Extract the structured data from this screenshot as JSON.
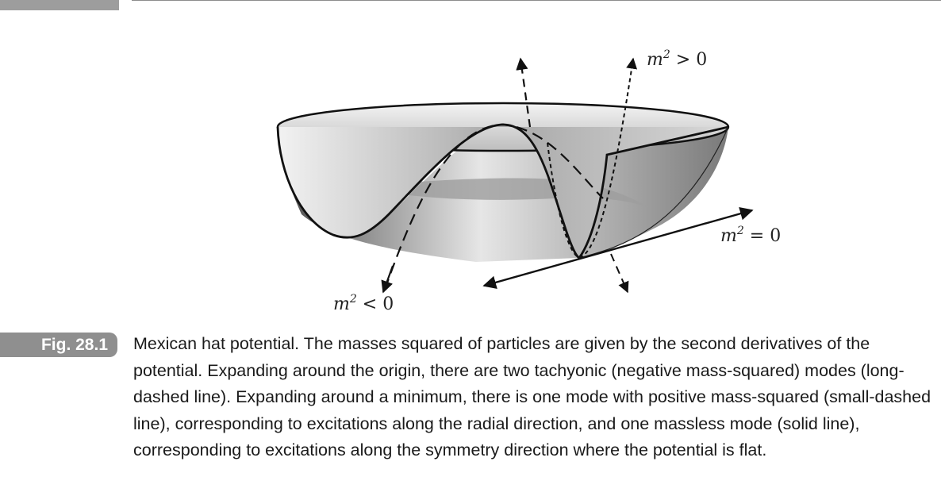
{
  "figure": {
    "labels": {
      "positive": {
        "var": "m",
        "exp": "2",
        "op": " > 0"
      },
      "zero": {
        "var": "m",
        "exp": "2",
        "op": " = 0"
      },
      "negative": {
        "var": "m",
        "exp": "2",
        "op": " < 0"
      }
    }
  },
  "caption": {
    "tag": "Fig. 28.1",
    "text": "Mexican hat potential. The masses squared of particles are given by the second derivatives of the potential. Expanding around the origin, there are two tachyonic (negative mass-squared) modes (long-dashed line). Expanding around a minimum, there is one mode with positive mass-squared (small-dashed line), corresponding to excitations along the radial direction, and one massless mode (solid line), corresponding to excitations along the symmetry direction where the potential is flat."
  }
}
